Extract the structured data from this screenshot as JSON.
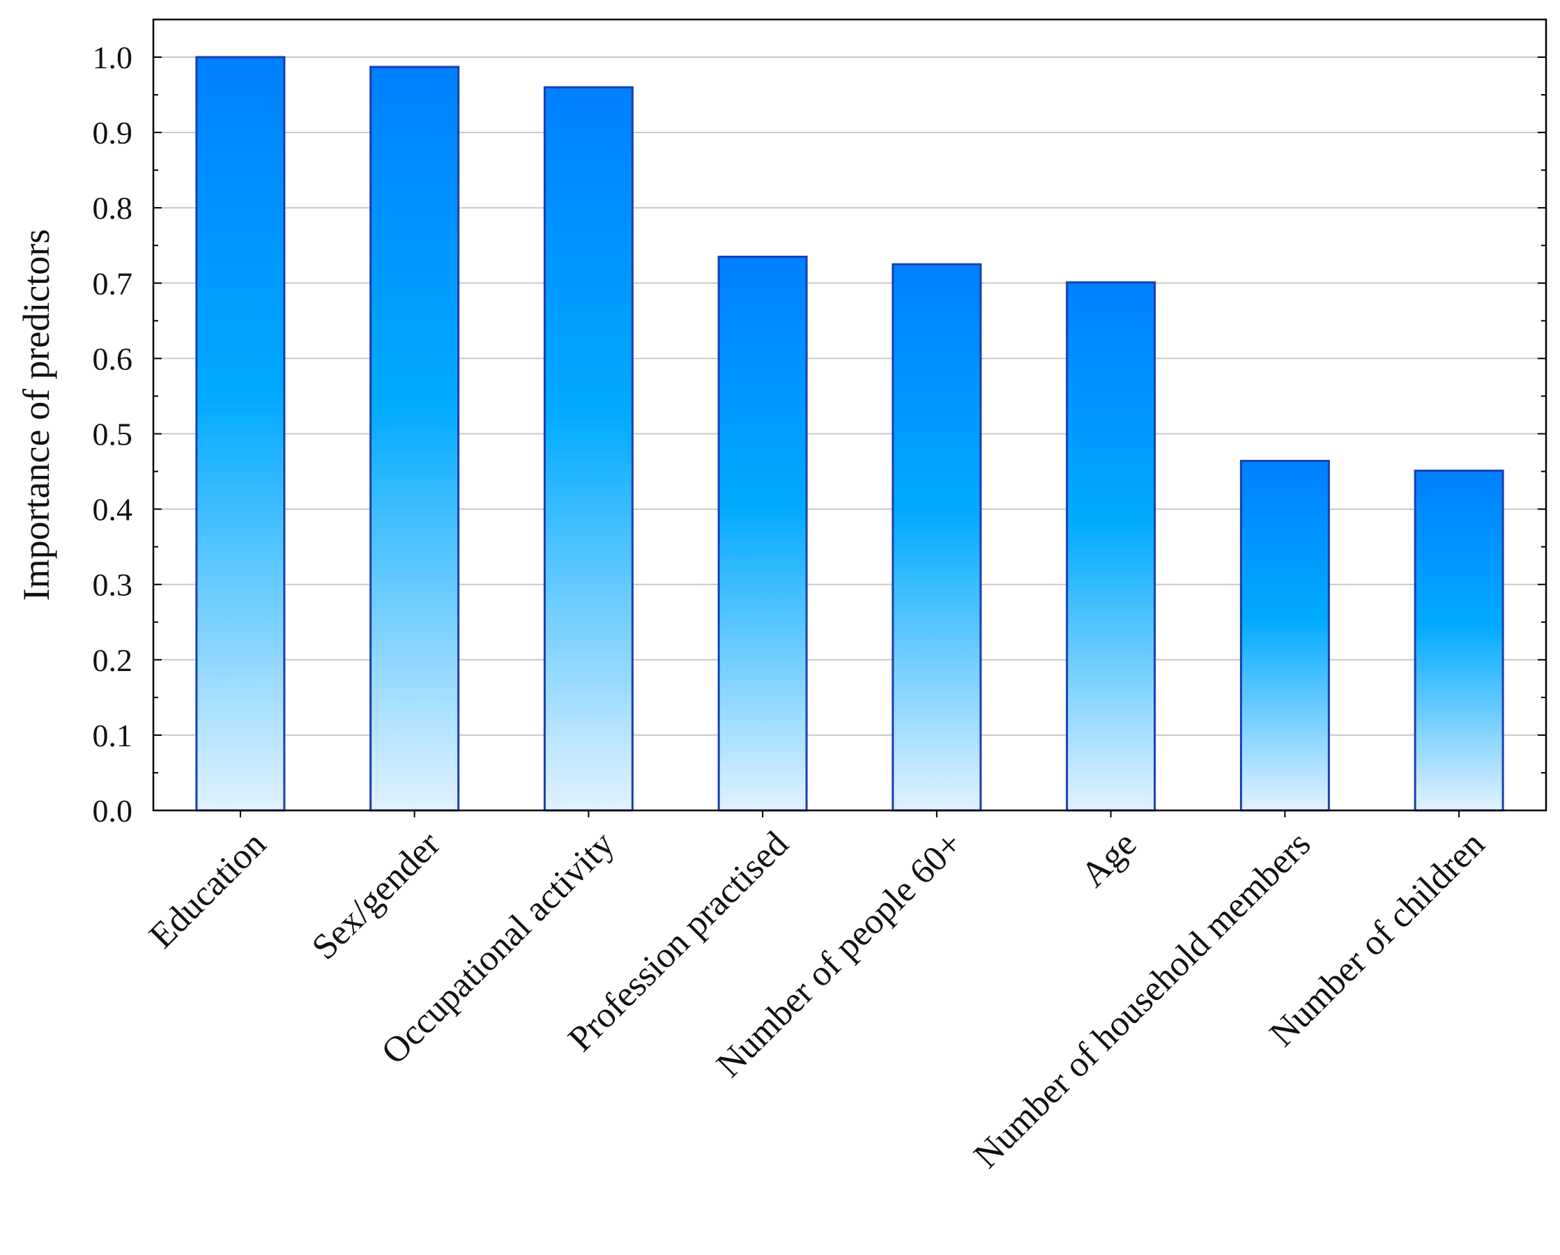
{
  "chart_data": {
    "type": "bar",
    "title": "",
    "xlabel": "",
    "ylabel": "Importance of predictors",
    "categories": [
      "Education",
      "Sex/gender",
      "Occupational activity",
      "Profession practised",
      "Number of people 60+",
      "Age",
      "Number of household members",
      "Number of children"
    ],
    "values": [
      1.0,
      0.987,
      0.96,
      0.735,
      0.725,
      0.701,
      0.464,
      0.451
    ],
    "ylim": [
      0.0,
      1.0
    ],
    "yticks": [
      "0.0",
      "0.1",
      "0.2",
      "0.3",
      "0.4",
      "0.5",
      "0.6",
      "0.7",
      "0.8",
      "0.9",
      "1.0"
    ],
    "grid": true,
    "legend": "none",
    "colors": {
      "bar_top": "#0080ff",
      "bar_mid": "#00aaff",
      "bar_bottom": "#e2f2ff",
      "bar_edge": "#1a3fb0",
      "grid": "#c8c8c8",
      "axis": "#000000"
    }
  }
}
